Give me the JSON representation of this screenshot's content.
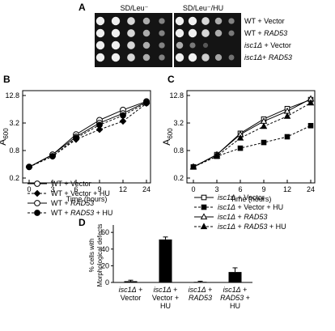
{
  "panelA": {
    "letter": "A",
    "col_labels": [
      "SD/Leu⁻",
      "SD/Leu⁻/HU"
    ],
    "row_labels": [
      [
        {
          "t": "WT + Vector",
          "i": false
        }
      ],
      [
        {
          "t": "WT + ",
          "i": false
        },
        {
          "t": "RAD53",
          "i": true
        }
      ],
      [
        {
          "t": "isc1Δ",
          "i": true
        },
        {
          "t": " + Vector",
          "i": false
        }
      ],
      [
        {
          "t": "isc1Δ",
          "i": true
        },
        {
          "t": "+ ",
          "i": false
        },
        {
          "t": "RAD53",
          "i": true
        }
      ]
    ],
    "spot_levels": [
      [
        [
          1,
          1,
          0.85,
          0.6,
          0.35
        ],
        [
          1,
          1,
          0.85,
          0.6,
          0.35
        ]
      ],
      [
        [
          1,
          1,
          0.85,
          0.6,
          0.35
        ],
        [
          1,
          1,
          0.85,
          0.6,
          0.3
        ]
      ],
      [
        [
          1,
          1,
          0.85,
          0.6,
          0.35
        ],
        [
          0.6,
          0.3,
          0.1,
          0,
          0
        ]
      ],
      [
        [
          1,
          1,
          0.85,
          0.6,
          0.35
        ],
        [
          1,
          1,
          0.8,
          0.55,
          0.25
        ]
      ]
    ]
  },
  "chart_data": [
    {
      "type": "line",
      "panel": "B",
      "xlabel": "Time (hours)",
      "ylabel": [
        {
          "t": "A",
          "sub": false
        },
        {
          "t": "600",
          "sub": true
        }
      ],
      "x_ticks": [
        0,
        3,
        6,
        9,
        12,
        24
      ],
      "y_ticks": [
        "0.2",
        "0.8",
        "3.2",
        "12.8"
      ],
      "y_scale": "log2",
      "ylim": [
        0.2,
        12.8
      ],
      "x": [
        0,
        3,
        6,
        9,
        12,
        24
      ],
      "series": [
        {
          "label": [
            {
              "t": "WT + Vector",
              "i": false
            }
          ],
          "marker": "open-circle",
          "dashed": false,
          "values": [
            0.35,
            0.65,
            1.8,
            3.7,
            6.2,
            9.5
          ]
        },
        {
          "label": [
            {
              "t": "WT + Vector + HU",
              "i": false
            }
          ],
          "marker": "filled-diamond",
          "dashed": true,
          "values": [
            0.35,
            0.6,
            1.4,
            2.3,
            3.5,
            8.6
          ]
        },
        {
          "label": [
            {
              "t": "WT + ",
              "i": false
            },
            {
              "t": "RAD53",
              "i": true
            }
          ],
          "marker": "open-circle",
          "dashed": false,
          "values": [
            0.35,
            0.65,
            1.6,
            3.2,
            5.2,
            9.2
          ]
        },
        {
          "label": [
            {
              "t": "WT + ",
              "i": false
            },
            {
              "t": "RAD53",
              "i": true
            },
            {
              "t": " + HU",
              "i": false
            }
          ],
          "marker": "filled-circle",
          "dashed": true,
          "values": [
            0.35,
            0.6,
            1.5,
            2.9,
            4.7,
            8.8
          ]
        }
      ]
    },
    {
      "type": "line",
      "panel": "C",
      "xlabel": "Time (hours)",
      "ylabel": [
        {
          "t": "A",
          "sub": false
        },
        {
          "t": "600",
          "sub": true
        }
      ],
      "x_ticks": [
        0,
        3,
        6,
        9,
        12,
        24
      ],
      "y_ticks": [
        "0.2",
        "0.8",
        "3.2",
        "12.8"
      ],
      "y_scale": "log2",
      "ylim": [
        0.2,
        12.8
      ],
      "x": [
        0,
        3,
        6,
        9,
        12,
        24
      ],
      "series": [
        {
          "label": [
            {
              "t": "isc1Δ",
              "i": true
            },
            {
              "t": " + Vector",
              "i": false
            }
          ],
          "marker": "open-square",
          "dashed": false,
          "values": [
            0.35,
            0.65,
            1.9,
            3.9,
            6.6,
            10.4
          ]
        },
        {
          "label": [
            {
              "t": "isc1Δ",
              "i": true
            },
            {
              "t": " + Vector + HU",
              "i": false
            }
          ],
          "marker": "filled-square",
          "dashed": true,
          "values": [
            0.35,
            0.6,
            0.9,
            1.2,
            1.6,
            2.8
          ]
        },
        {
          "label": [
            {
              "t": "isc1Δ",
              "i": true
            },
            {
              "t": " + ",
              "i": false
            },
            {
              "t": "RAD53",
              "i": true
            }
          ],
          "marker": "open-triangle",
          "dashed": false,
          "values": [
            0.35,
            0.65,
            1.8,
            3.5,
            5.8,
            10.8
          ]
        },
        {
          "label": [
            {
              "t": "isc1Δ",
              "i": true
            },
            {
              "t": " + ",
              "i": false
            },
            {
              "t": "RAD53",
              "i": true
            },
            {
              "t": " + HU",
              "i": false
            }
          ],
          "marker": "filled-triangle",
          "dashed": true,
          "values": [
            0.35,
            0.6,
            1.5,
            2.7,
            4.5,
            8.8
          ]
        }
      ]
    },
    {
      "type": "bar",
      "panel": "D",
      "ylabel_lines": [
        "% cells with",
        "Morphological defects"
      ],
      "y_ticks": [
        0,
        20,
        40,
        60
      ],
      "ylim": [
        0,
        65
      ],
      "categories": [
        [
          [
            {
              "t": "isc1Δ",
              "i": true
            },
            {
              "t": " +",
              "i": false
            }
          ],
          [
            {
              "t": "Vector",
              "i": false
            }
          ]
        ],
        [
          [
            {
              "t": "isc1Δ",
              "i": true
            },
            {
              "t": " +",
              "i": false
            }
          ],
          [
            {
              "t": "Vector +",
              "i": false
            }
          ],
          [
            {
              "t": "HU",
              "i": false
            }
          ]
        ],
        [
          [
            {
              "t": "isc1Δ",
              "i": true
            },
            {
              "t": " +",
              "i": false
            }
          ],
          [
            {
              "t": "RAD53",
              "i": true
            }
          ]
        ],
        [
          [
            {
              "t": "isc1Δ",
              "i": true
            },
            {
              "t": " +",
              "i": false
            }
          ],
          [
            {
              "t": "RAD53",
              "i": true
            },
            {
              "t": " +",
              "i": false
            }
          ],
          [
            {
              "t": "HU",
              "i": false
            }
          ]
        ]
      ],
      "values": [
        1.5,
        51.5,
        0.7,
        12.5
      ],
      "errors": [
        1.2,
        3.0,
        0.8,
        5.0
      ]
    }
  ]
}
